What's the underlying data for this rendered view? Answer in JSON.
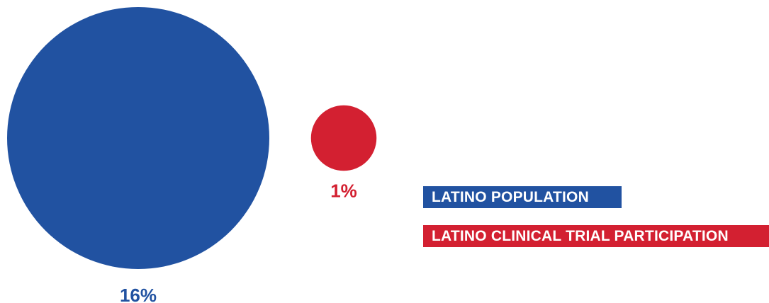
{
  "chart_data": {
    "type": "bubble",
    "series": [
      {
        "name": "LATINO POPULATION",
        "value": 16,
        "label": "16%",
        "color": "#2152a1"
      },
      {
        "name": "LATINO CLINICAL TRIAL PARTICIPATION",
        "value": 1,
        "label": "1%",
        "color": "#d32031"
      }
    ],
    "legend": {
      "position": "right",
      "items": [
        "LATINO POPULATION",
        "LATINO CLINICAL TRIAL PARTICIPATION"
      ]
    }
  }
}
